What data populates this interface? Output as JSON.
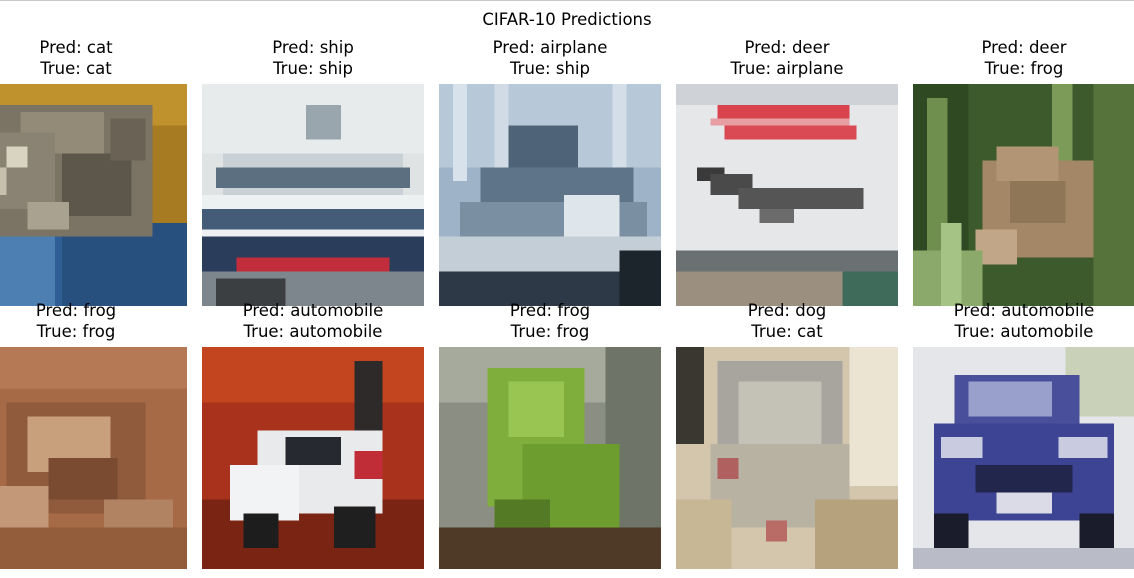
{
  "figure": {
    "title": "CIFAR-10 Predictions"
  },
  "samples": [
    {
      "pred_text": "Pred: cat",
      "true_text": "True: cat",
      "image": "cat-on-blue-cloth"
    },
    {
      "pred_text": "Pred: ship",
      "true_text": "True: ship",
      "image": "white-ship-red-hull"
    },
    {
      "pred_text": "Pred: airplane",
      "true_text": "True: ship",
      "image": "ship-at-dock"
    },
    {
      "pred_text": "Pred: deer",
      "true_text": "True: airplane",
      "image": "airplane-on-sign"
    },
    {
      "pred_text": "Pred: deer",
      "true_text": "True: frog",
      "image": "frog-in-grass"
    },
    {
      "pred_text": "Pred: frog",
      "true_text": "True: frog",
      "image": "brown-frog"
    },
    {
      "pred_text": "Pred: automobile",
      "true_text": "True: automobile",
      "image": "white-car-red-background"
    },
    {
      "pred_text": "Pred: frog",
      "true_text": "True: frog",
      "image": "green-frog"
    },
    {
      "pred_text": "Pred: dog",
      "true_text": "True: cat",
      "image": "grey-cat"
    },
    {
      "pred_text": "Pred: automobile",
      "true_text": "True: automobile",
      "image": "blue-car"
    }
  ]
}
